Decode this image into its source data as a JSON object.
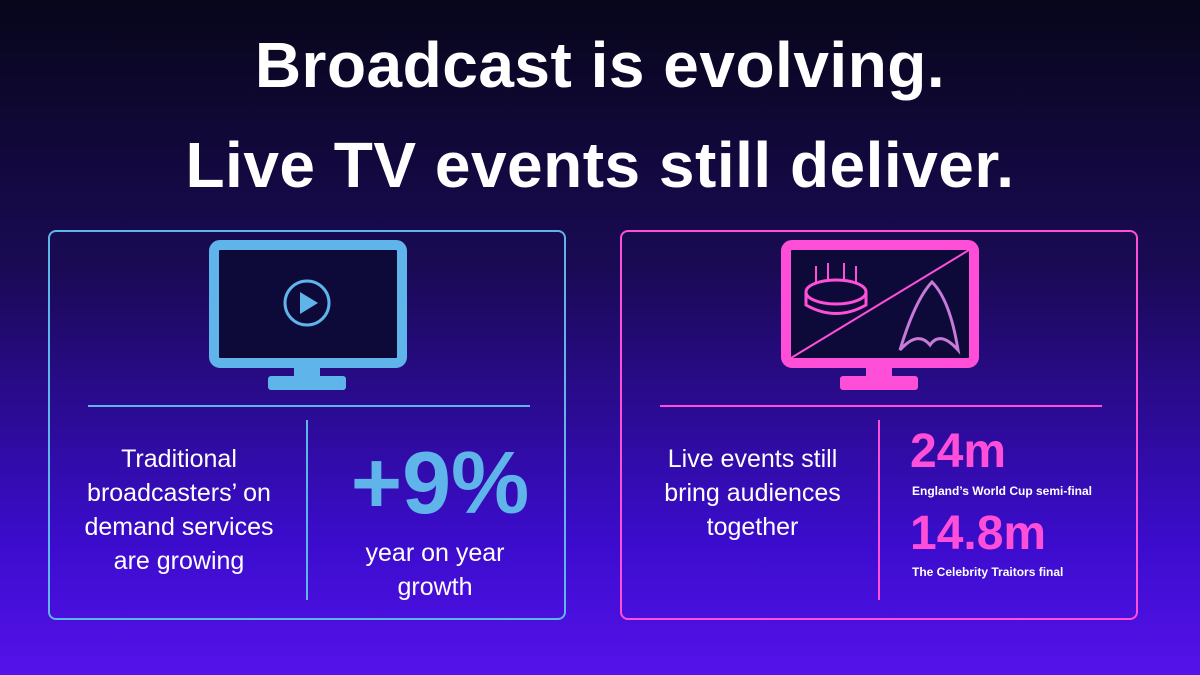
{
  "title": [
    "Broadcast is evolving.",
    "Live TV events still deliver."
  ],
  "panels": [
    {
      "description": "Traditional broadcasters’ on demand services are growing",
      "stat": "+9%",
      "stat_caption": "year on year growth"
    },
    {
      "description": "Live events still bring audiences together",
      "stats": [
        {
          "value": "24m",
          "caption": "England’s World Cup semi-final"
        },
        {
          "value": "14.8m",
          "caption": "The Celebrity Traitors final"
        }
      ]
    }
  ]
}
